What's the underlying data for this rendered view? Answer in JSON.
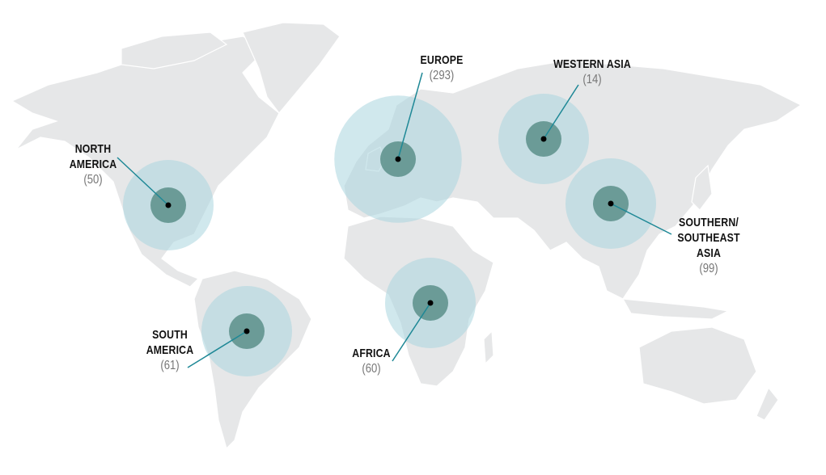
{
  "colors": {
    "land": "#e6e7e8",
    "outer_circle": "#a9d6de",
    "inner_circle": "#5b8f89",
    "leader_line": "#1e8896",
    "dot": "#000000",
    "count_text": "#777777"
  },
  "regions": [
    {
      "id": "north-america",
      "name_lines": [
        "NORTH",
        "AMERICA"
      ],
      "count": "(50)",
      "value": 50
    },
    {
      "id": "europe",
      "name_lines": [
        "EUROPE"
      ],
      "count": "(293)",
      "value": 293
    },
    {
      "id": "western-asia",
      "name_lines": [
        "WESTERN ASIA"
      ],
      "count": "(14)",
      "value": 14
    },
    {
      "id": "southern-southeast-asia",
      "name_lines": [
        "SOUTHERN/",
        "SOUTHEAST",
        "ASIA"
      ],
      "count": "(99)",
      "value": 99
    },
    {
      "id": "africa",
      "name_lines": [
        "AFRICA"
      ],
      "count": "(60)",
      "value": 60
    },
    {
      "id": "south-america",
      "name_lines": [
        "SOUTH",
        "AMERICA"
      ],
      "count": "(61)",
      "value": 61
    }
  ]
}
